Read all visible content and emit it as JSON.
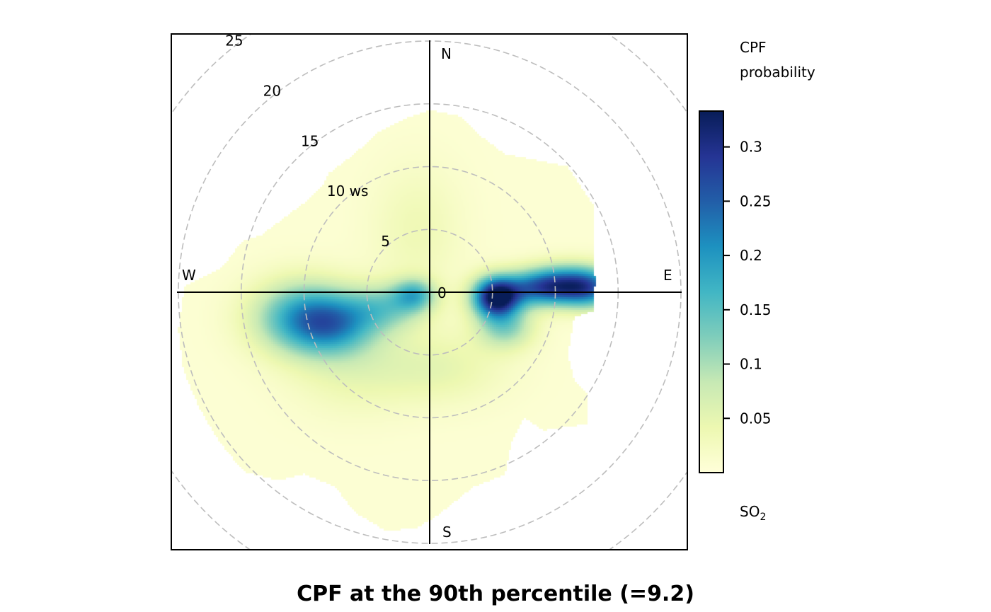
{
  "chart_data": {
    "type": "heatmap",
    "subtype": "polar",
    "title": "CPF at the 90th percentile (=9.2)",
    "radial_variable": "ws",
    "radial_ticks": [
      {
        "value": 0,
        "label": "0"
      },
      {
        "value": 5,
        "label": "5"
      },
      {
        "value": 10,
        "label": "10 ws"
      },
      {
        "value": 15,
        "label": "15"
      },
      {
        "value": 20,
        "label": "20"
      },
      {
        "value": 25,
        "label": "25"
      }
    ],
    "r_max": 20.5,
    "compass": {
      "north": "N",
      "east": "E",
      "south": "S",
      "west": "W"
    },
    "colorbar": {
      "title_line1": "CPF",
      "title_line2": "probability",
      "pollutant_main": "SO",
      "pollutant_sub": "2",
      "range": [
        0,
        0.333
      ],
      "ticks": [
        {
          "value": 0.05,
          "label": "0.05"
        },
        {
          "value": 0.1,
          "label": "0.1"
        },
        {
          "value": 0.15,
          "label": "0.15"
        },
        {
          "value": 0.2,
          "label": "0.2"
        },
        {
          "value": 0.25,
          "label": "0.25"
        },
        {
          "value": 0.3,
          "label": "0.3"
        }
      ],
      "colors": [
        "#ffffd9",
        "#edf8b1",
        "#c7e9b4",
        "#7fcdbb",
        "#41b6c4",
        "#1d91c0",
        "#225ea8",
        "#253494",
        "#081d58"
      ]
    },
    "blobs": [
      {
        "u": -10,
        "v": -2.0,
        "sx": 2.8,
        "sy": 2.0,
        "amp": 0.17
      },
      {
        "u": -7.5,
        "v": -2.6,
        "sx": 2.4,
        "sy": 1.6,
        "amp": 0.12
      },
      {
        "u": -3.5,
        "v": -1.2,
        "sx": 2.2,
        "sy": 1.3,
        "amp": 0.1
      },
      {
        "u": -1.2,
        "v": -0.2,
        "sx": 1.2,
        "sy": 0.9,
        "amp": 0.13
      },
      {
        "u": 5.3,
        "v": -0.4,
        "sx": 1.3,
        "sy": 1.1,
        "amp": 0.33
      },
      {
        "u": 8.5,
        "v": 0.3,
        "sx": 2.0,
        "sy": 1.0,
        "amp": 0.15
      },
      {
        "u": 11.0,
        "v": 0.6,
        "sx": 2.3,
        "sy": 1.1,
        "amp": 0.2
      },
      {
        "u": 12.8,
        "v": 0.2,
        "sx": 1.5,
        "sy": 1.1,
        "amp": 0.12
      },
      {
        "u": 6.0,
        "v": -2.8,
        "sx": 1.6,
        "sy": 1.2,
        "amp": 0.11
      },
      {
        "u": -6,
        "v": -6,
        "sx": 3.5,
        "sy": 2.5,
        "amp": 0.04
      },
      {
        "u": -1,
        "v": 5,
        "sx": 2.5,
        "sy": 3.5,
        "amp": 0.03
      },
      {
        "u": 1,
        "v": -6,
        "sx": 3.5,
        "sy": 2.0,
        "amp": 0.04
      }
    ],
    "coverage_polygon": [
      [
        -19.5,
        0.5
      ],
      [
        -17.5,
        1.5
      ],
      [
        -16.5,
        2.0
      ],
      [
        -15.0,
        4.0
      ],
      [
        -13.5,
        4.5
      ],
      [
        -11.5,
        6.0
      ],
      [
        -9.5,
        7.5
      ],
      [
        -8.5,
        8.5
      ],
      [
        -8.0,
        9.5
      ],
      [
        -6.0,
        11.0
      ],
      [
        -4.0,
        12.8
      ],
      [
        -2.0,
        13.8
      ],
      [
        0,
        14.5
      ],
      [
        2.5,
        14.0
      ],
      [
        4.0,
        12.5
      ],
      [
        6.0,
        11.0
      ],
      [
        8.5,
        10.5
      ],
      [
        11.0,
        10.0
      ],
      [
        12.0,
        8.5
      ],
      [
        13.0,
        7.0
      ],
      [
        13.0,
        4.0
      ],
      [
        13.0,
        2.5
      ],
      [
        13.2,
        1.0
      ],
      [
        13.0,
        -1.5
      ],
      [
        11.5,
        -2.0
      ],
      [
        11.0,
        -5.0
      ],
      [
        11.5,
        -7.0
      ],
      [
        12.5,
        -8.0
      ],
      [
        12.5,
        -10.5
      ],
      [
        9.0,
        -11.0
      ],
      [
        7.5,
        -10.0
      ],
      [
        6.5,
        -12.0
      ],
      [
        6.0,
        -14.5
      ],
      [
        3.5,
        -15.5
      ],
      [
        1.0,
        -17.5
      ],
      [
        -1.0,
        -18.8
      ],
      [
        -3.5,
        -19.0
      ],
      [
        -6.0,
        -17.5
      ],
      [
        -7.5,
        -15.5
      ],
      [
        -10.0,
        -14.5
      ],
      [
        -12.0,
        -15.0
      ],
      [
        -14.0,
        -14.5
      ],
      [
        -16.0,
        -14.0
      ],
      [
        -17.5,
        -11.5
      ],
      [
        -18.5,
        -9.5
      ],
      [
        -19.5,
        -7.0
      ],
      [
        -20.0,
        -3.0
      ]
    ]
  }
}
